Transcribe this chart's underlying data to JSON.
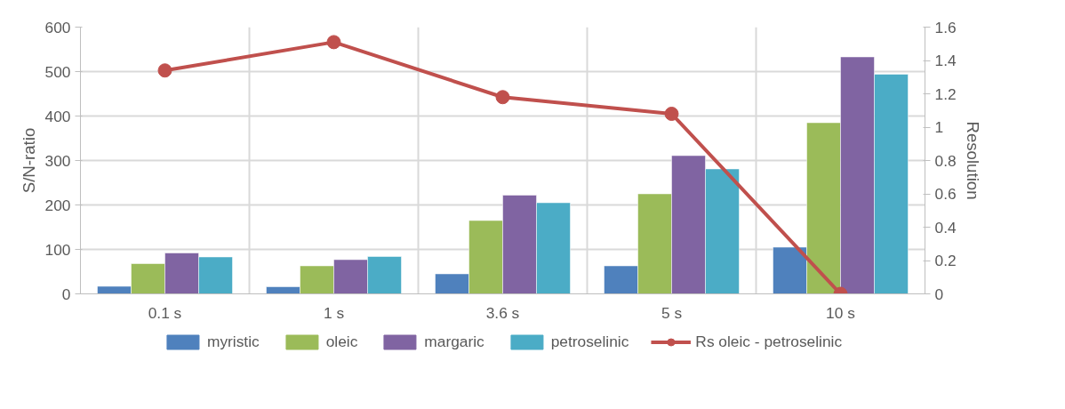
{
  "chart_data": {
    "type": "bar",
    "ylabel": "S/N-ratio",
    "y2label": "Resolution",
    "categories": [
      "0.1 s",
      "1 s",
      "3.6 s",
      "5 s",
      "10 s"
    ],
    "series": [
      {
        "name": "myristic",
        "color": "#4f81bd",
        "values": [
          17,
          16,
          45,
          63,
          105
        ]
      },
      {
        "name": "oleic",
        "color": "#9bbb59",
        "values": [
          68,
          63,
          165,
          225,
          385
        ]
      },
      {
        "name": "margaric",
        "color": "#8064a2",
        "values": [
          92,
          77,
          222,
          311,
          533
        ]
      },
      {
        "name": "petroselinic",
        "color": "#4bacc6",
        "values": [
          83,
          84,
          205,
          281,
          494
        ]
      },
      {
        "name": "Rs oleic - petroselinic",
        "type": "line",
        "axis": "y2",
        "color": "#c0504d",
        "marker": "circle",
        "values": [
          1.34,
          1.51,
          1.18,
          1.08,
          0.0
        ]
      }
    ],
    "ylim": [
      0,
      600
    ],
    "yticks": [
      0,
      100,
      200,
      300,
      400,
      500,
      600
    ],
    "y2lim": [
      0,
      1.6
    ],
    "y2ticks": [
      0,
      0.2,
      0.4,
      0.6,
      0.8,
      1,
      1.2,
      1.4,
      1.6
    ],
    "grid": true,
    "legend": "bottom"
  }
}
